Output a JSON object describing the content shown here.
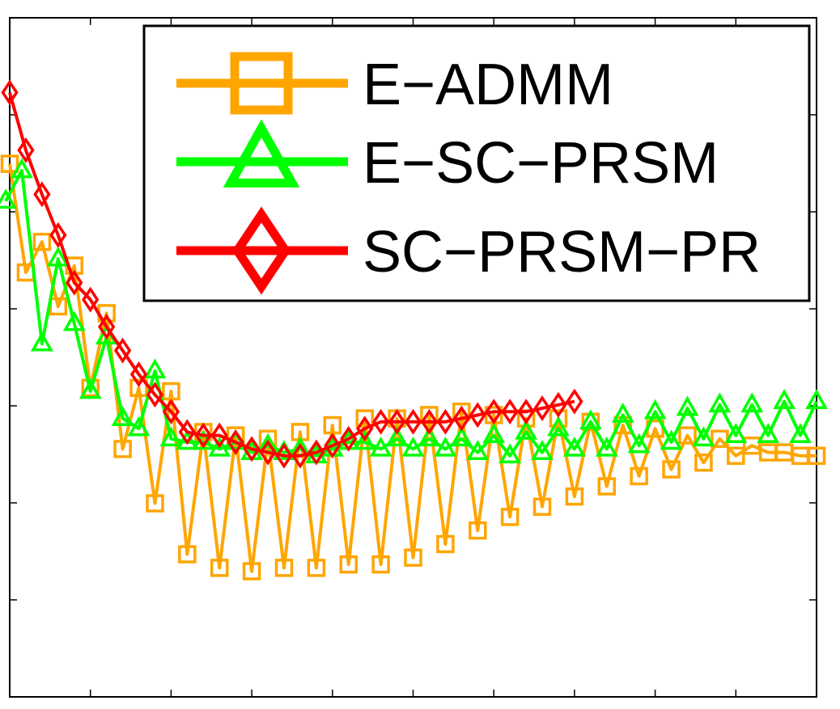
{
  "chart_data": {
    "type": "line",
    "title": "",
    "xlabel": "",
    "ylabel": "",
    "xlim": [
      0,
      100
    ],
    "ylim": [
      0,
      100
    ],
    "grid": false,
    "legend_position": "top-right",
    "series": [
      {
        "name": "E−ADMM",
        "color": "#FFA500",
        "marker": "square",
        "x": [
          0,
          2,
          4,
          6,
          8,
          10,
          12,
          14,
          16,
          18,
          20,
          22,
          24,
          26,
          28,
          30,
          32,
          34,
          36,
          38,
          40,
          42,
          44,
          46,
          48,
          50,
          52,
          54,
          56,
          58,
          60,
          62,
          64,
          66,
          68,
          70,
          72,
          74,
          76,
          78,
          80,
          82,
          84,
          86,
          88,
          90,
          92,
          94,
          96,
          98,
          100
        ],
        "y": [
          78.5,
          62.5,
          67,
          57.5,
          63.5,
          45.5,
          56.5,
          36.5,
          45.5,
          28.5,
          45,
          21,
          39,
          19,
          38.5,
          18.5,
          38,
          19,
          39,
          19,
          40,
          19.5,
          41,
          19.5,
          41,
          20.5,
          41.5,
          22.5,
          42,
          24.5,
          41.5,
          26.5,
          41,
          28,
          41,
          29.5,
          40.5,
          31,
          40,
          32.5,
          39.5,
          33.5,
          38.5,
          34.5,
          38,
          35.5,
          37,
          36,
          36,
          35.5,
          35.5
        ]
      },
      {
        "name": "E−SC−PRSM",
        "color": "#00FF00",
        "marker": "triangle",
        "x": [
          -0.5,
          1.5,
          4,
          6,
          8,
          10,
          12,
          14,
          16,
          18,
          20,
          22,
          24,
          26,
          28,
          30,
          32,
          34,
          36,
          38,
          40,
          42,
          44,
          46,
          48,
          50,
          52,
          54,
          56,
          58,
          60,
          62,
          64,
          66,
          68,
          70,
          72,
          74,
          76,
          78,
          80,
          82,
          84,
          86,
          88,
          90,
          92,
          94,
          96,
          98,
          100
        ],
        "y": [
          73,
          77.5,
          52,
          64.5,
          55,
          45,
          53,
          41,
          39.5,
          48,
          38,
          37.5,
          37.5,
          36.5,
          37.5,
          36,
          37,
          36,
          36.5,
          35.5,
          36.5,
          37.5,
          37.5,
          36.5,
          38,
          36.5,
          38,
          36.5,
          38,
          36,
          38.5,
          35.5,
          39,
          36,
          39.5,
          36.5,
          40.5,
          36.5,
          41.5,
          37,
          42,
          37.5,
          42.5,
          38,
          43,
          38.5,
          43,
          38.5,
          43.5,
          38.5,
          43.5
        ]
      },
      {
        "name": "SC−PRSM−PR",
        "color": "#FF0000",
        "marker": "diamond",
        "x": [
          0,
          2,
          4,
          6,
          8,
          10,
          12,
          14,
          16,
          18,
          20,
          22,
          24,
          26,
          28,
          30,
          32,
          34,
          36,
          38,
          40,
          42,
          44,
          46,
          48,
          50,
          52,
          54,
          56,
          58,
          60,
          62,
          64,
          66,
          68,
          70
        ],
        "y": [
          89,
          80.5,
          74,
          68,
          61,
          58.5,
          54.5,
          51,
          47.5,
          44.5,
          42,
          39,
          38.5,
          38.5,
          37.5,
          36.5,
          36,
          35.5,
          35.5,
          36,
          37,
          38,
          39.5,
          40.5,
          40.5,
          40.5,
          40.5,
          40.5,
          41,
          41.5,
          42,
          42,
          42,
          42.5,
          43,
          43.5
        ]
      }
    ]
  }
}
